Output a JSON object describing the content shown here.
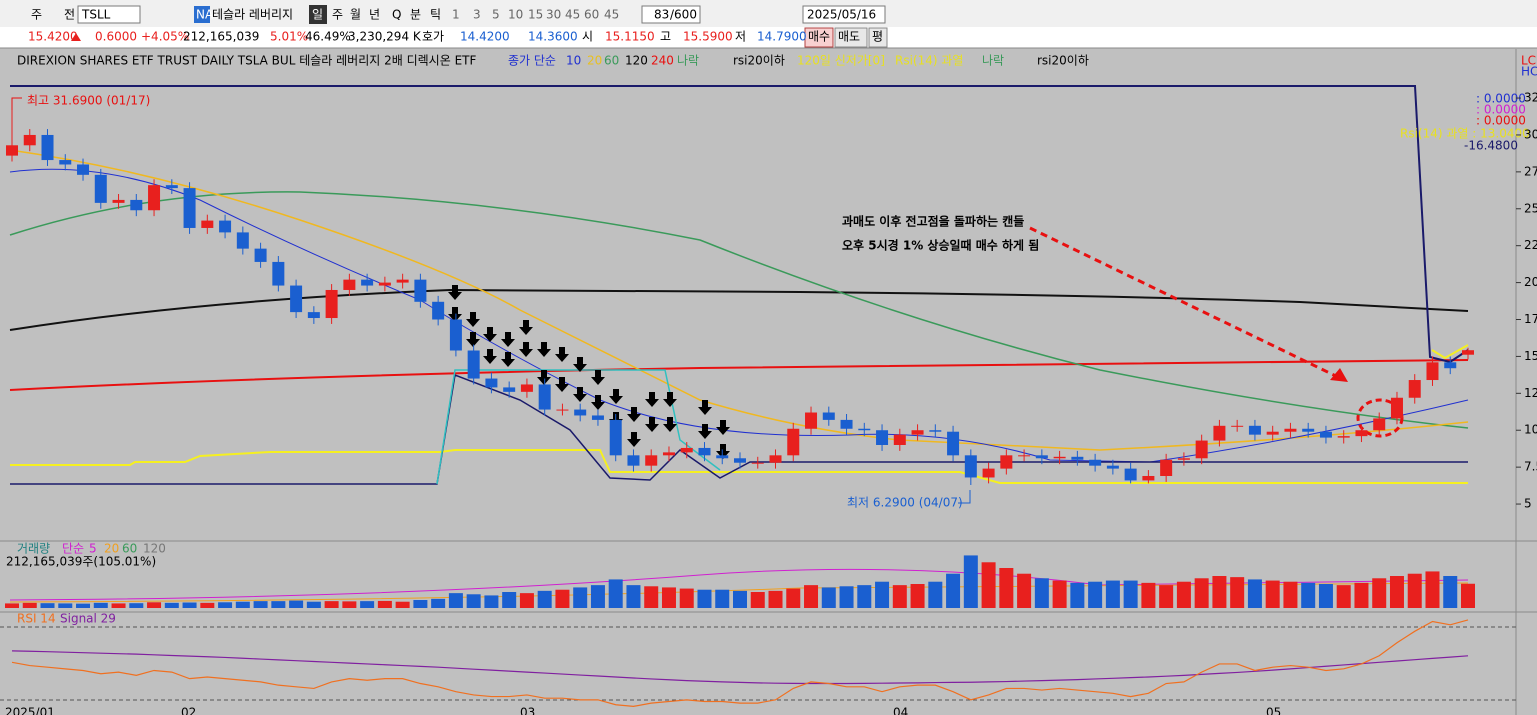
{
  "toolbar": {
    "items": [
      "주",
      "전",
      "TSLL",
      "NA",
      "테슬라 레버리지",
      "일",
      "주",
      "월",
      "년",
      "Q",
      "분",
      "틱",
      "1",
      "3",
      "5",
      "10",
      "15",
      "30",
      "45",
      "60",
      "45",
      "83",
      "/600",
      "2025/05/16"
    ]
  },
  "quote": {
    "items": [
      "15.4200",
      "0.6000",
      "+4.05%",
      "212,165,039",
      "5.01%",
      "46.49%",
      "3,230,294 K",
      "호가",
      "14.4200",
      "14.3600",
      "시",
      "15.1150",
      "고",
      "15.5900",
      "저",
      "14.7900",
      "매수",
      "매도",
      "평"
    ]
  },
  "legend": {
    "items": [
      "DIREXION SHARES ETF TRUST DAILY TSLA BUL  테슬라 레버리지 2배 디렉시온 ETF",
      "종가 단순",
      "10",
      "20",
      "60",
      "120",
      "240",
      "나락",
      "rsi20이하",
      "120일 신저가[0]",
      "Rsi(14) 과열",
      "나락",
      "rsi20이하"
    ]
  },
  "right_labels": {
    "items": [
      ": 0.0000",
      ": 0.0000",
      ": 0.0000",
      "Rsi(14) 과열 : 13.0400",
      "-16.4800",
      "LC",
      "HC"
    ]
  },
  "annotations": {
    "high": "최고 31.6900 (01/17)",
    "low": "최저 6.2900 (04/07)",
    "note_line1": "과매도 이후 전고점을 돌파하는 캔들",
    "note_line2": "오후 5시경 1% 상승일때 매수 하게 됨"
  },
  "volume_legend": {
    "items": [
      "거래량",
      "단순",
      "5",
      "20",
      "60",
      "120",
      "212,165,039주(105.01%)"
    ]
  },
  "rsi_legend": {
    "items": [
      "RSI 14",
      "Signal 29"
    ]
  },
  "chart_data": {
    "type": "candlestick",
    "x_labels": [
      "2025/01",
      "02",
      "03",
      "04",
      "05"
    ],
    "ylim": [
      2.7,
      34.4
    ],
    "yticks": [
      5,
      7.5,
      10,
      12.5,
      15,
      17.5,
      20,
      22.5,
      25,
      27.5,
      30,
      32.5
    ],
    "up_color": "#e8201e",
    "down_color": "#1a5fd0",
    "open": [
      28.6,
      29.3,
      30.0,
      28.3,
      28.0,
      27.3,
      25.4,
      25.6,
      24.9,
      26.6,
      26.4,
      23.7,
      24.2,
      23.4,
      22.3,
      21.4,
      19.8,
      18.0,
      17.6,
      19.5,
      20.2,
      19.8,
      20.0,
      20.2,
      18.7,
      17.5,
      15.4,
      13.5,
      12.9,
      12.6,
      13.1,
      11.4,
      11.4,
      11.0,
      10.7,
      8.3,
      7.6,
      8.3,
      8.5,
      8.8,
      8.3,
      8.1,
      7.8,
      7.8,
      8.3,
      10.1,
      11.2,
      10.7,
      10.1,
      10.0,
      9.0,
      9.7,
      10.0,
      9.9,
      8.3,
      6.8,
      7.4,
      8.3,
      8.3,
      8.1,
      8.2,
      8.0,
      7.6,
      7.4,
      6.6,
      6.9,
      8.0,
      8.1,
      9.3,
      10.3,
      10.3,
      9.7,
      9.9,
      10.1,
      9.9,
      9.5,
      9.6,
      10.0,
      10.8,
      12.2,
      13.4,
      14.6,
      15.115
    ],
    "high": [
      31.69,
      30.4,
      30.4,
      28.7,
      28.4,
      27.7,
      26.0,
      26.0,
      27.0,
      27.0,
      26.8,
      24.6,
      24.6,
      23.8,
      22.7,
      21.8,
      20.2,
      18.4,
      19.9,
      20.6,
      20.6,
      20.4,
      20.6,
      20.6,
      19.1,
      17.9,
      15.8,
      13.9,
      13.3,
      13.5,
      13.5,
      11.8,
      11.8,
      11.4,
      11.1,
      8.7,
      8.7,
      8.9,
      9.2,
      9.2,
      8.7,
      8.5,
      8.2,
      8.7,
      10.5,
      11.6,
      11.6,
      11.1,
      10.5,
      10.4,
      10.1,
      10.4,
      10.4,
      10.3,
      8.7,
      7.8,
      8.7,
      8.7,
      8.7,
      8.6,
      8.6,
      8.4,
      8.0,
      7.8,
      7.3,
      8.4,
      8.5,
      9.7,
      10.7,
      10.7,
      10.7,
      10.3,
      10.5,
      10.5,
      10.3,
      10.0,
      10.4,
      11.2,
      12.6,
      13.8,
      15.0,
      15.0,
      15.59
    ],
    "low": [
      28.2,
      28.9,
      27.9,
      27.6,
      26.9,
      25.0,
      25.0,
      24.5,
      24.5,
      26.0,
      23.3,
      23.3,
      23.0,
      21.9,
      21.0,
      19.4,
      17.6,
      17.2,
      17.2,
      19.1,
      19.4,
      19.4,
      19.6,
      18.3,
      17.1,
      15.0,
      13.1,
      12.5,
      12.2,
      12.2,
      11.0,
      11.0,
      10.6,
      10.3,
      7.9,
      7.2,
      7.2,
      7.9,
      8.1,
      7.9,
      7.7,
      7.4,
      7.4,
      7.4,
      7.9,
      9.7,
      10.3,
      9.7,
      9.6,
      8.6,
      8.6,
      9.3,
      9.5,
      7.9,
      6.29,
      6.4,
      7.0,
      7.9,
      7.7,
      7.7,
      7.6,
      7.2,
      7.0,
      6.4,
      6.4,
      6.5,
      7.6,
      7.7,
      8.9,
      9.9,
      9.3,
      9.3,
      9.5,
      9.5,
      9.1,
      9.1,
      9.2,
      9.6,
      10.4,
      11.8,
      13.0,
      13.8,
      14.79
    ],
    "close": [
      29.3,
      30.0,
      28.3,
      28.0,
      27.3,
      25.4,
      25.6,
      24.9,
      26.6,
      26.4,
      23.7,
      24.2,
      23.4,
      22.3,
      21.4,
      19.8,
      18.0,
      17.6,
      19.5,
      20.2,
      19.8,
      20.0,
      20.2,
      18.7,
      17.5,
      15.4,
      13.5,
      12.9,
      12.6,
      13.1,
      11.4,
      11.4,
      11.0,
      10.7,
      8.3,
      7.6,
      8.3,
      8.5,
      8.8,
      8.3,
      8.1,
      7.8,
      7.8,
      8.3,
      10.1,
      11.2,
      10.7,
      10.1,
      10.0,
      9.0,
      9.7,
      10.0,
      9.9,
      8.3,
      6.8,
      7.4,
      8.3,
      8.3,
      8.1,
      8.2,
      8.0,
      7.6,
      7.4,
      6.6,
      6.9,
      8.0,
      8.1,
      9.3,
      10.3,
      10.3,
      9.7,
      9.9,
      10.1,
      9.9,
      9.5,
      9.6,
      10.0,
      10.8,
      12.2,
      13.4,
      14.6,
      14.2,
      15.42
    ],
    "volume_ylim": [
      0,
      490
    ],
    "volume": [
      40,
      45,
      42,
      40,
      38,
      45,
      40,
      42,
      50,
      45,
      48,
      45,
      50,
      55,
      60,
      60,
      65,
      55,
      60,
      58,
      60,
      62,
      55,
      70,
      80,
      130,
      120,
      110,
      140,
      130,
      150,
      160,
      180,
      200,
      250,
      200,
      190,
      180,
      170,
      160,
      160,
      150,
      140,
      150,
      170,
      200,
      180,
      190,
      200,
      230,
      200,
      210,
      230,
      300,
      460,
      400,
      350,
      300,
      260,
      240,
      220,
      230,
      240,
      240,
      220,
      200,
      230,
      260,
      280,
      270,
      250,
      240,
      230,
      220,
      210,
      200,
      220,
      260,
      280,
      300,
      320,
      280,
      212.165039
    ],
    "rsi_ylim": [
      20,
      77
    ],
    "rsi": [
      48,
      46,
      45,
      44,
      43,
      41,
      42,
      40,
      43,
      42,
      38,
      39,
      38,
      37,
      36,
      34,
      33,
      32,
      36,
      38,
      37,
      38,
      38,
      35,
      33,
      30,
      28,
      27,
      27,
      28,
      26,
      26,
      25,
      25,
      22,
      21,
      23,
      24,
      25,
      24,
      24,
      23,
      23,
      25,
      32,
      36,
      35,
      33,
      33,
      30,
      33,
      34,
      34,
      30,
      25,
      28,
      32,
      32,
      31,
      32,
      31,
      30,
      29,
      27,
      29,
      35,
      36,
      42,
      47,
      47,
      43,
      45,
      46,
      45,
      43,
      44,
      47,
      52,
      60,
      67,
      73,
      71,
      74
    ],
    "signal": [
      55,
      54.8,
      54.5,
      54.2,
      53.9,
      53.6,
      53.3,
      53,
      52.6,
      52.2,
      51.8,
      51.4,
      51,
      50.5,
      50,
      49.5,
      49,
      48.5,
      48,
      47.5,
      47,
      46.5,
      46,
      45.5,
      45,
      44.4,
      43.8,
      43.2,
      42.6,
      42,
      41.4,
      40.8,
      40.2,
      39.6,
      39,
      38.4,
      37.8,
      37.3,
      36.8,
      36.4,
      36,
      35.7,
      35.4,
      35.2,
      35.1,
      35,
      35,
      35,
      35.1,
      35.2,
      35.3,
      35.4,
      35.6,
      35.7,
      35.8,
      36,
      36.2,
      36.5,
      36.8,
      37.1,
      37.4,
      37.8,
      38.2,
      38.6,
      39,
      39.5,
      40,
      40.6,
      41.2,
      41.8,
      42.5,
      43.2,
      44,
      44.8,
      45.6,
      46.4,
      47.2,
      48,
      48.8,
      49.6,
      50.4,
      51.2,
      52
    ]
  }
}
